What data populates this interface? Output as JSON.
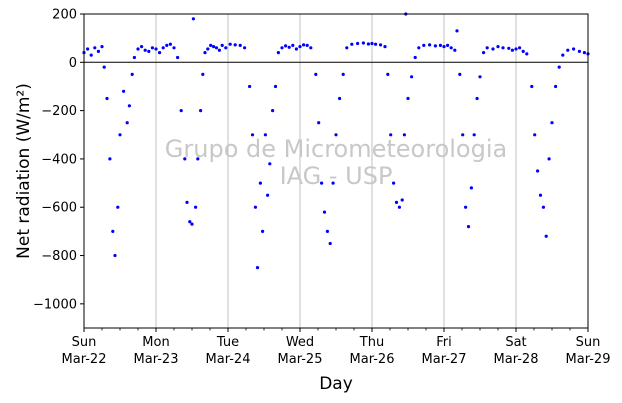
{
  "chart_data": {
    "type": "scatter",
    "title": "",
    "xlabel": "Day",
    "ylabel": "Net radiation (W/m²)",
    "ylim": [
      -1100,
      200
    ],
    "yticks": [
      200,
      0,
      -200,
      -400,
      -600,
      -800,
      -1000
    ],
    "xlim": [
      0,
      7
    ],
    "x_units": "days since Sun Mar-22 00:00",
    "xticks": [
      {
        "x": 0,
        "line1": "Sun",
        "line2": "Mar-22"
      },
      {
        "x": 1,
        "line1": "Mon",
        "line2": "Mar-23"
      },
      {
        "x": 2,
        "line1": "Tue",
        "line2": "Mar-24"
      },
      {
        "x": 3,
        "line1": "Wed",
        "line2": "Mar-25"
      },
      {
        "x": 4,
        "line1": "Thu",
        "line2": "Mar-26"
      },
      {
        "x": 5,
        "line1": "Fri",
        "line2": "Mar-27"
      },
      {
        "x": 6,
        "line1": "Sat",
        "line2": "Mar-28"
      },
      {
        "x": 7,
        "line1": "Sun",
        "line2": "Mar-29"
      }
    ],
    "vertical_grid": true,
    "zero_line": true,
    "marker_color": "#0000ff",
    "watermark": [
      "Grupo de Micrometeorologia",
      "IAG - USP"
    ],
    "series": [
      {
        "points": [
          [
            0.0,
            40
          ],
          [
            0.05,
            55
          ],
          [
            0.1,
            30
          ],
          [
            0.15,
            60
          ],
          [
            0.2,
            45
          ],
          [
            0.25,
            65
          ],
          [
            0.28,
            -20
          ],
          [
            0.32,
            -150
          ],
          [
            0.36,
            -400
          ],
          [
            0.4,
            -700
          ],
          [
            0.43,
            -800
          ],
          [
            0.47,
            -600
          ],
          [
            0.5,
            -300
          ],
          [
            0.55,
            -120
          ],
          [
            0.6,
            -250
          ],
          [
            0.63,
            -180
          ],
          [
            0.67,
            -50
          ],
          [
            0.7,
            20
          ],
          [
            0.75,
            55
          ],
          [
            0.8,
            65
          ],
          [
            0.85,
            50
          ],
          [
            0.9,
            45
          ],
          [
            0.95,
            60
          ],
          [
            1.0,
            55
          ],
          [
            1.05,
            40
          ],
          [
            1.1,
            60
          ],
          [
            1.15,
            70
          ],
          [
            1.2,
            75
          ],
          [
            1.25,
            60
          ],
          [
            1.3,
            20
          ],
          [
            1.35,
            -200
          ],
          [
            1.4,
            -400
          ],
          [
            1.43,
            -580
          ],
          [
            1.47,
            -660
          ],
          [
            1.5,
            -670
          ],
          [
            1.52,
            180
          ],
          [
            1.55,
            -600
          ],
          [
            1.58,
            -400
          ],
          [
            1.62,
            -200
          ],
          [
            1.65,
            -50
          ],
          [
            1.68,
            40
          ],
          [
            1.72,
            55
          ],
          [
            1.76,
            70
          ],
          [
            1.8,
            65
          ],
          [
            1.84,
            60
          ],
          [
            1.88,
            50
          ],
          [
            1.92,
            70
          ],
          [
            1.97,
            60
          ],
          [
            2.03,
            75
          ],
          [
            2.1,
            72
          ],
          [
            2.17,
            70
          ],
          [
            2.23,
            60
          ],
          [
            2.3,
            -100
          ],
          [
            2.34,
            -300
          ],
          [
            2.38,
            -600
          ],
          [
            2.41,
            -850
          ],
          [
            2.45,
            -500
          ],
          [
            2.48,
            -700
          ],
          [
            2.52,
            -300
          ],
          [
            2.55,
            -550
          ],
          [
            2.58,
            -420
          ],
          [
            2.62,
            -200
          ],
          [
            2.66,
            -100
          ],
          [
            2.7,
            40
          ],
          [
            2.75,
            60
          ],
          [
            2.8,
            68
          ],
          [
            2.85,
            62
          ],
          [
            2.9,
            70
          ],
          [
            2.95,
            55
          ],
          [
            3.0,
            65
          ],
          [
            3.05,
            72
          ],
          [
            3.1,
            70
          ],
          [
            3.15,
            60
          ],
          [
            3.22,
            -50
          ],
          [
            3.26,
            -250
          ],
          [
            3.3,
            -500
          ],
          [
            3.34,
            -620
          ],
          [
            3.38,
            -700
          ],
          [
            3.42,
            -750
          ],
          [
            3.46,
            -500
          ],
          [
            3.5,
            -300
          ],
          [
            3.55,
            -150
          ],
          [
            3.6,
            -50
          ],
          [
            3.65,
            60
          ],
          [
            3.72,
            75
          ],
          [
            3.8,
            78
          ],
          [
            3.88,
            80
          ],
          [
            3.95,
            76
          ],
          [
            4.0,
            78
          ],
          [
            4.05,
            75
          ],
          [
            4.12,
            72
          ],
          [
            4.18,
            65
          ],
          [
            4.22,
            -50
          ],
          [
            4.26,
            -300
          ],
          [
            4.3,
            -500
          ],
          [
            4.34,
            -580
          ],
          [
            4.38,
            -600
          ],
          [
            4.42,
            -570
          ],
          [
            4.45,
            -300
          ],
          [
            4.47,
            200
          ],
          [
            4.5,
            -150
          ],
          [
            4.55,
            -60
          ],
          [
            4.6,
            20
          ],
          [
            4.65,
            60
          ],
          [
            4.72,
            70
          ],
          [
            4.8,
            72
          ],
          [
            4.88,
            68
          ],
          [
            4.95,
            70
          ],
          [
            5.0,
            65
          ],
          [
            5.05,
            70
          ],
          [
            5.1,
            60
          ],
          [
            5.15,
            50
          ],
          [
            5.18,
            130
          ],
          [
            5.22,
            -50
          ],
          [
            5.26,
            -300
          ],
          [
            5.3,
            -600
          ],
          [
            5.34,
            -680
          ],
          [
            5.38,
            -520
          ],
          [
            5.42,
            -300
          ],
          [
            5.46,
            -150
          ],
          [
            5.5,
            -60
          ],
          [
            5.55,
            40
          ],
          [
            5.6,
            60
          ],
          [
            5.68,
            55
          ],
          [
            5.75,
            65
          ],
          [
            5.82,
            60
          ],
          [
            5.9,
            58
          ],
          [
            5.95,
            50
          ],
          [
            6.0,
            55
          ],
          [
            6.05,
            60
          ],
          [
            6.1,
            45
          ],
          [
            6.15,
            35
          ],
          [
            6.22,
            -100
          ],
          [
            6.26,
            -300
          ],
          [
            6.3,
            -450
          ],
          [
            6.34,
            -550
          ],
          [
            6.38,
            -600
          ],
          [
            6.42,
            -720
          ],
          [
            6.46,
            -400
          ],
          [
            6.5,
            -250
          ],
          [
            6.55,
            -100
          ],
          [
            6.6,
            -20
          ],
          [
            6.65,
            30
          ],
          [
            6.72,
            50
          ],
          [
            6.8,
            55
          ],
          [
            6.88,
            45
          ],
          [
            6.95,
            40
          ],
          [
            7.0,
            35
          ]
        ]
      }
    ]
  }
}
